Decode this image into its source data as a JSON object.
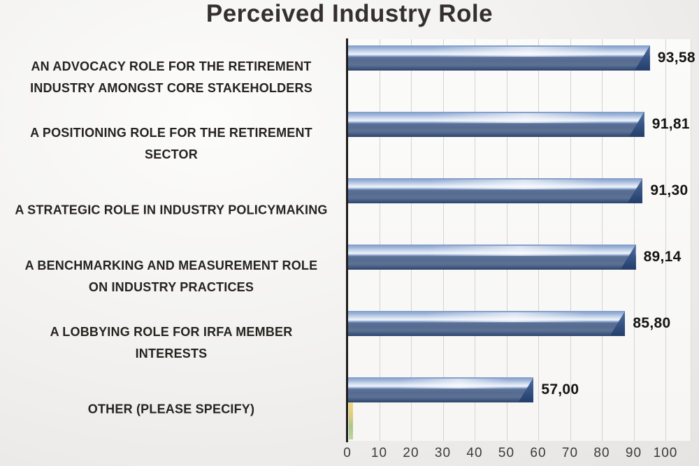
{
  "chart_data": {
    "type": "bar",
    "orientation": "horizontal",
    "title": "Perceived Industry Role",
    "categories": [
      "AN ADVOCACY ROLE FOR THE RETIREMENT INDUSTRY AMONGST CORE STAKEHOLDERS",
      "A POSITIONING ROLE FOR THE RETIREMENT SECTOR",
      "A STRATEGIC ROLE IN INDUSTRY POLICYMAKING",
      "A BENCHMARKING AND MEASUREMENT ROLE ON INDUSTRY PRACTICES",
      "A LOBBYING ROLE FOR IRFA MEMBER INTERESTS",
      "OTHER (PLEASE SPECIFY)"
    ],
    "category_lines": [
      [
        "AN ADVOCACY ROLE FOR THE RETIREMENT",
        "INDUSTRY AMONGST CORE STAKEHOLDERS"
      ],
      [
        "A POSITIONING ROLE FOR THE RETIREMENT",
        "SECTOR"
      ],
      [
        "A STRATEGIC ROLE IN INDUSTRY POLICYMAKING"
      ],
      [
        "A BENCHMARKING AND MEASUREMENT ROLE",
        "ON INDUSTRY PRACTICES"
      ],
      [
        "A LOBBYING ROLE FOR IRFA MEMBER",
        "INTERESTS"
      ],
      [
        "OTHER (PLEASE SPECIFY)"
      ]
    ],
    "values": [
      93.58,
      91.81,
      91.3,
      89.14,
      85.8,
      57.0
    ],
    "value_labels": [
      "93,58",
      "91,81",
      "91,30",
      "89,14",
      "85,80",
      "57,00"
    ],
    "xlim": [
      0,
      100
    ],
    "x_ticks": [
      "0",
      "10",
      "20",
      "30",
      "40",
      "50",
      "60",
      "70",
      "80",
      "90",
      "100"
    ],
    "grid": true,
    "legend": false,
    "colors": {
      "bar_top_face": "#7e9ac6",
      "bar_highlight": "#f0f4fa",
      "bar_front_face": "#566b8e",
      "bar_end_cap": "#233e6a",
      "mini_bar_yellow": "#f2d878",
      "mini_bar_green": "#abc88b",
      "axis_line": "#1e1d1c",
      "gridline": "#d4d3d1",
      "title_text": "#35302d",
      "value_text": "#151413",
      "category_text": "#26231f",
      "tick_text": "#3d3b38"
    }
  }
}
